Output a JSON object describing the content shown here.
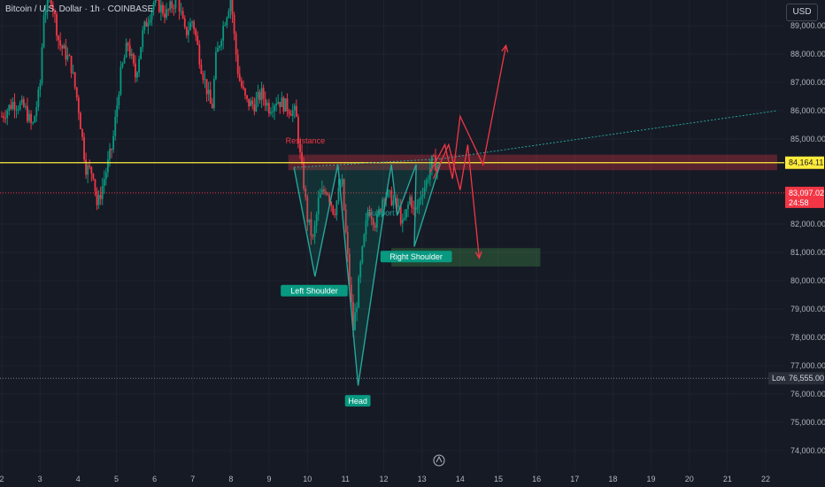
{
  "header": {
    "symbol_title": "Bitcoin / U.S. Dollar · 1h · COINBASE",
    "currency": "USD"
  },
  "colors": {
    "background": "#161a25",
    "up": "#089981",
    "down": "#f23645",
    "resistance_line": "#ffeb3b",
    "arrow": "#f23645",
    "pattern_fill": "#1b5e4f",
    "label_green": "#089981"
  },
  "chart_data": {
    "type": "candlestick",
    "y_axis": {
      "range": [
        73600,
        90000
      ],
      "ticks": [
        "89,000.00",
        "88,000.00",
        "87,000.00",
        "86,000.00",
        "85,000.00",
        "82,000.00",
        "81,000.00",
        "80,000.00",
        "79,000.00",
        "78,000.00",
        "77,000.00",
        "76,000.00",
        "75,000.00",
        "74,000.00"
      ],
      "tick_values": [
        89000,
        88000,
        87000,
        86000,
        85000,
        82000,
        81000,
        80000,
        79000,
        78000,
        77000,
        76000,
        75000,
        74000
      ]
    },
    "x_axis": {
      "ticks": [
        "2",
        "3",
        "4",
        "5",
        "6",
        "7",
        "8",
        "9",
        "10",
        "11",
        "12",
        "13",
        "14",
        "15",
        "16",
        "17",
        "18",
        "19",
        "20",
        "21",
        "22"
      ],
      "tick_days": [
        2,
        3,
        4,
        5,
        6,
        7,
        8,
        9,
        10,
        11,
        12,
        13,
        14,
        15,
        16,
        17,
        18,
        19,
        20,
        21,
        22
      ]
    },
    "price_path": [
      [
        2.0,
        85800
      ],
      [
        2.3,
        86300
      ],
      [
        2.6,
        86100
      ],
      [
        2.8,
        85400
      ],
      [
        3.0,
        86800
      ],
      [
        3.1,
        89500
      ],
      [
        3.3,
        90000
      ],
      [
        3.5,
        88400
      ],
      [
        3.8,
        87700
      ],
      [
        4.0,
        86200
      ],
      [
        4.2,
        84000
      ],
      [
        4.4,
        83800
      ],
      [
        4.5,
        82600
      ],
      [
        4.7,
        83700
      ],
      [
        4.9,
        84800
      ],
      [
        5.0,
        86000
      ],
      [
        5.1,
        87200
      ],
      [
        5.3,
        88400
      ],
      [
        5.5,
        87200
      ],
      [
        5.7,
        88800
      ],
      [
        6.0,
        89900
      ],
      [
        6.3,
        89400
      ],
      [
        6.6,
        90000
      ],
      [
        6.8,
        88700
      ],
      [
        7.0,
        89200
      ],
      [
        7.2,
        87700
      ],
      [
        7.5,
        86000
      ],
      [
        7.6,
        87800
      ],
      [
        7.8,
        89000
      ],
      [
        8.0,
        90000
      ],
      [
        8.1,
        88400
      ],
      [
        8.2,
        87200
      ],
      [
        8.4,
        86300
      ],
      [
        8.6,
        86200
      ],
      [
        8.8,
        86600
      ],
      [
        9.0,
        86100
      ],
      [
        9.2,
        86400
      ],
      [
        9.5,
        86100
      ],
      [
        9.7,
        85900
      ],
      [
        9.8,
        84500
      ],
      [
        9.9,
        83500
      ],
      [
        10.0,
        82200
      ],
      [
        10.15,
        81400
      ],
      [
        10.3,
        82900
      ],
      [
        10.5,
        83300
      ],
      [
        10.7,
        82400
      ],
      [
        10.9,
        83600
      ],
      [
        11.0,
        81800
      ],
      [
        11.1,
        80000
      ],
      [
        11.2,
        78300
      ],
      [
        11.3,
        79300
      ],
      [
        11.4,
        80600
      ],
      [
        11.6,
        82600
      ],
      [
        11.8,
        82000
      ],
      [
        12.0,
        83100
      ],
      [
        12.2,
        82900
      ],
      [
        12.4,
        82500
      ],
      [
        12.5,
        81900
      ],
      [
        12.7,
        83000
      ],
      [
        12.8,
        82300
      ],
      [
        12.9,
        82700
      ],
      [
        13.0,
        83200
      ],
      [
        13.1,
        83400
      ],
      [
        13.25,
        84200
      ],
      [
        13.4,
        84100
      ],
      [
        13.5,
        83900
      ]
    ],
    "horizontal_levels": [
      {
        "name": "Resistance",
        "value": 84164.11,
        "label": "84,164.11"
      },
      {
        "name": "Current",
        "value": 83097.02,
        "label": "83,097.02",
        "countdown": "24:58"
      },
      {
        "name": "Low",
        "value": 76555.0,
        "label": "76,555.00"
      }
    ],
    "zones": [
      {
        "name": "Resistance",
        "from_day": 9.5,
        "to_day": 22.3,
        "y_low": 83900,
        "y_high": 84450
      },
      {
        "name": "Support",
        "from_day": 12.2,
        "to_day": 16.1,
        "y_low": 80500,
        "y_high": 81150
      }
    ],
    "pattern": {
      "zigzag": [
        [
          9.65,
          84000
        ],
        [
          10.2,
          80150
        ],
        [
          10.8,
          84100
        ],
        [
          11.33,
          76300
        ],
        [
          12.1,
          83300
        ],
        [
          12.2,
          84100
        ],
        [
          12.35,
          82300
        ],
        [
          12.85,
          84100
        ],
        [
          12.8,
          81200
        ],
        [
          13.5,
          84200
        ]
      ],
      "neckline": [
        [
          9.65,
          84000
        ],
        [
          13.5,
          84300
        ]
      ],
      "trend_projection": [
        [
          13.5,
          84300
        ],
        [
          22.3,
          86000
        ]
      ]
    },
    "arrows": [
      {
        "name": "bull-path",
        "points": [
          [
            13.2,
            83800
          ],
          [
            13.6,
            84800
          ],
          [
            13.8,
            83600
          ],
          [
            14.0,
            85800
          ],
          [
            14.6,
            84100
          ],
          [
            15.2,
            88300
          ]
        ]
      },
      {
        "name": "bear-path",
        "points": [
          [
            13.3,
            83600
          ],
          [
            13.7,
            84800
          ],
          [
            14.0,
            83200
          ],
          [
            14.2,
            84800
          ],
          [
            14.5,
            80800
          ]
        ]
      }
    ],
    "annotations": {
      "resistance": "Resistance",
      "support": "Support",
      "left_shoulder": "Left Shoulder",
      "head": "Head",
      "right_shoulder": "Right Shoulder",
      "low_tag": "Low"
    }
  }
}
